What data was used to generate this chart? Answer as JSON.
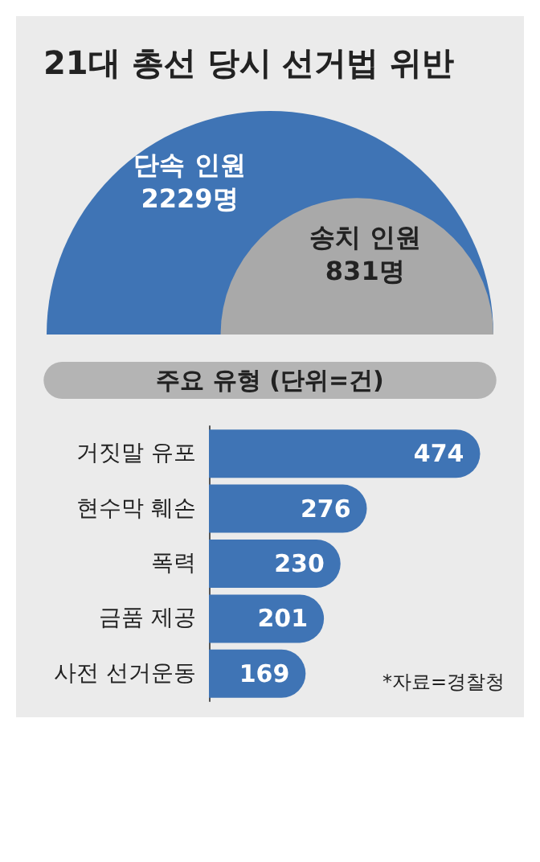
{
  "chart_data": [
    {
      "type": "other",
      "title": "21대 총선 당시 선거법 위반",
      "categories": [
        "단속 인원",
        "송치 인원"
      ],
      "values": [
        2229,
        831
      ],
      "value_labels": [
        "2229명",
        "831명"
      ],
      "colors": [
        "#3f74b5",
        "#a9a9a9"
      ]
    },
    {
      "type": "bar",
      "orientation": "horizontal",
      "title": "주요 유형 (단위=건)",
      "categories": [
        "거짓말 유포",
        "현수막 훼손",
        "폭력",
        "금품 제공",
        "사전 선거운동"
      ],
      "values": [
        474,
        276,
        230,
        201,
        169
      ],
      "color": "#3f74b5",
      "data_labels": true,
      "annotations": [
        "*자료=경찰청"
      ]
    }
  ]
}
